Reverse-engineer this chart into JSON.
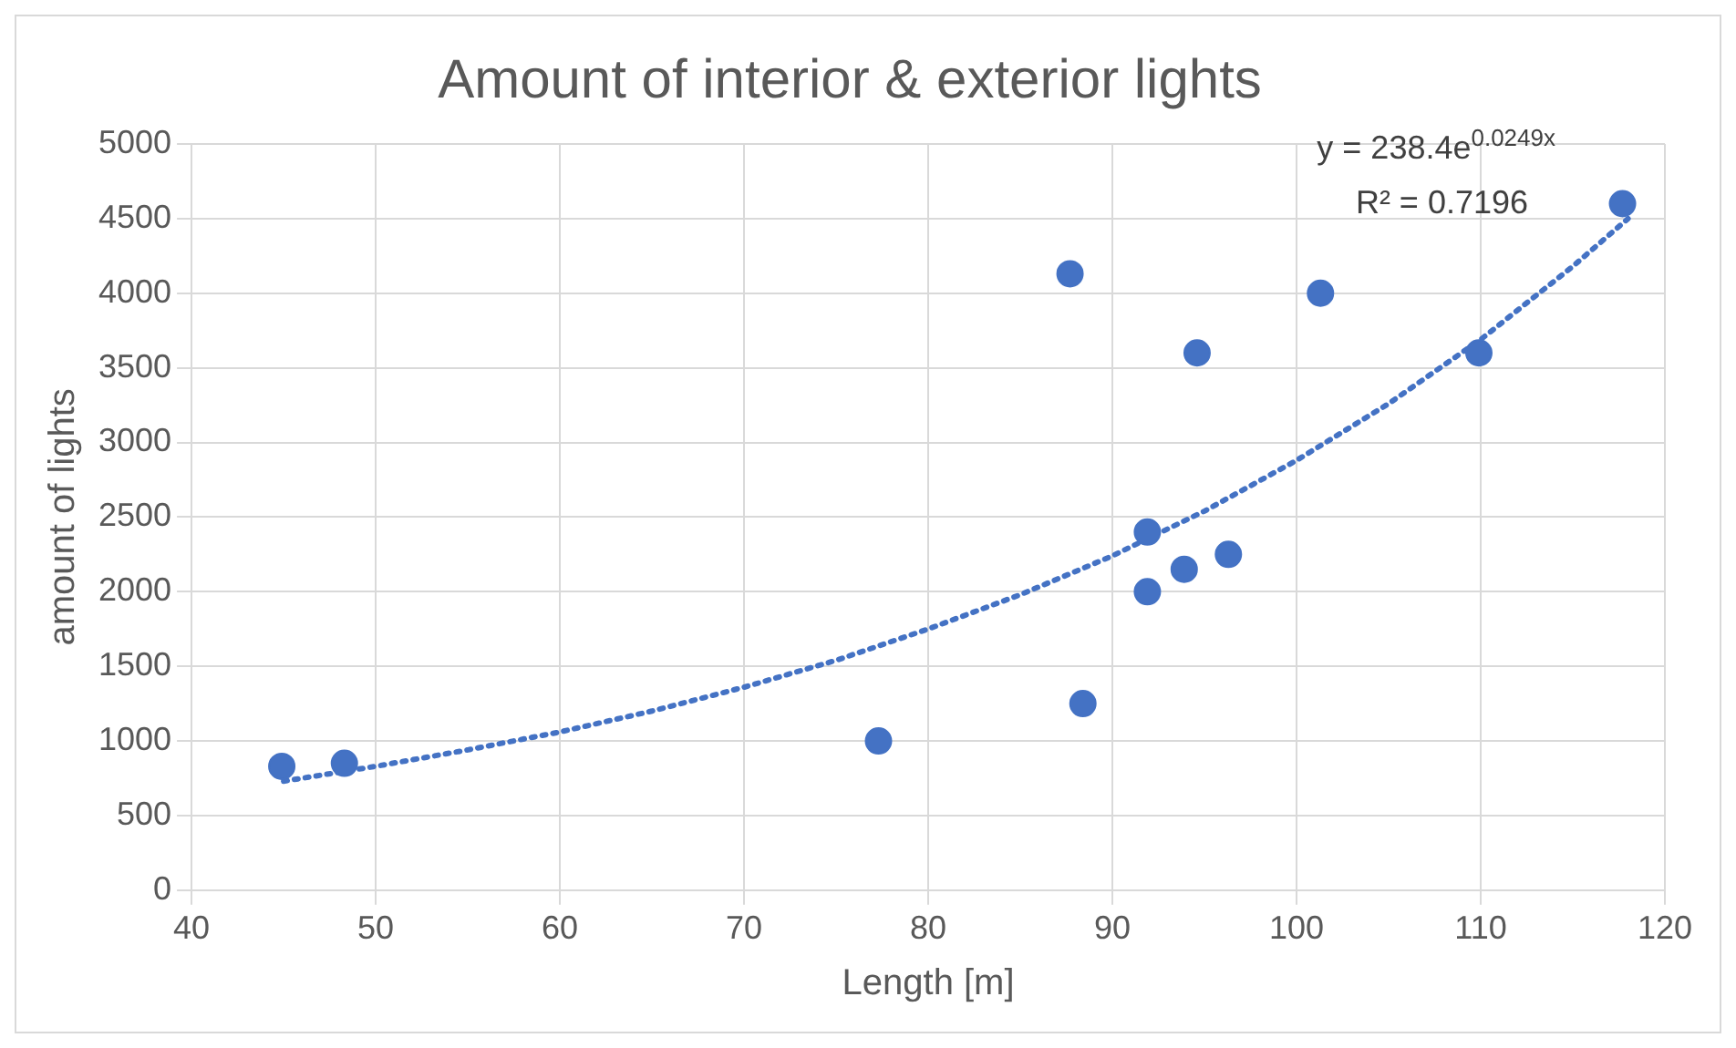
{
  "chart_data": {
    "type": "scatter",
    "title": "Amount of interior & exterior lights",
    "xlabel": "Length [m]",
    "ylabel": "amount of lights",
    "xlim": [
      40,
      120
    ],
    "xticks": [
      40,
      50,
      60,
      70,
      80,
      90,
      100,
      110,
      120
    ],
    "ylim": [
      0,
      5000
    ],
    "yticks": [
      0,
      500,
      1000,
      1500,
      2000,
      2500,
      3000,
      3500,
      4000,
      4500,
      5000
    ],
    "grid": true,
    "legend": false,
    "marker": "circle",
    "series": [
      {
        "color": "#4472c4",
        "x": [
          44.9,
          48.3,
          77.3,
          87.7,
          88.4,
          91.9,
          91.9,
          93.9,
          94.6,
          96.3,
          101.3,
          109.9,
          117.7
        ],
        "values": [
          830,
          850,
          1000,
          4130,
          1250,
          2400,
          2000,
          2150,
          3600,
          2250,
          4000,
          3600,
          4600
        ]
      },
      {
        "type": "line",
        "color": "#4472c4",
        "line_style": "dotted",
        "marker": "none",
        "x": [
          45,
          50,
          55,
          60,
          65,
          70,
          75,
          80,
          85,
          90,
          95,
          100,
          105,
          110,
          115,
          118
        ],
        "values": [
          730,
          830,
          940,
          1060,
          1200,
          1360,
          1540,
          1750,
          1980,
          2240,
          2540,
          2880,
          3260,
          3690,
          4180,
          4500
        ]
      }
    ],
    "annotations": [
      "y = 238.4e$^{0.0249x}$",
      "R² = 0.7196"
    ]
  }
}
